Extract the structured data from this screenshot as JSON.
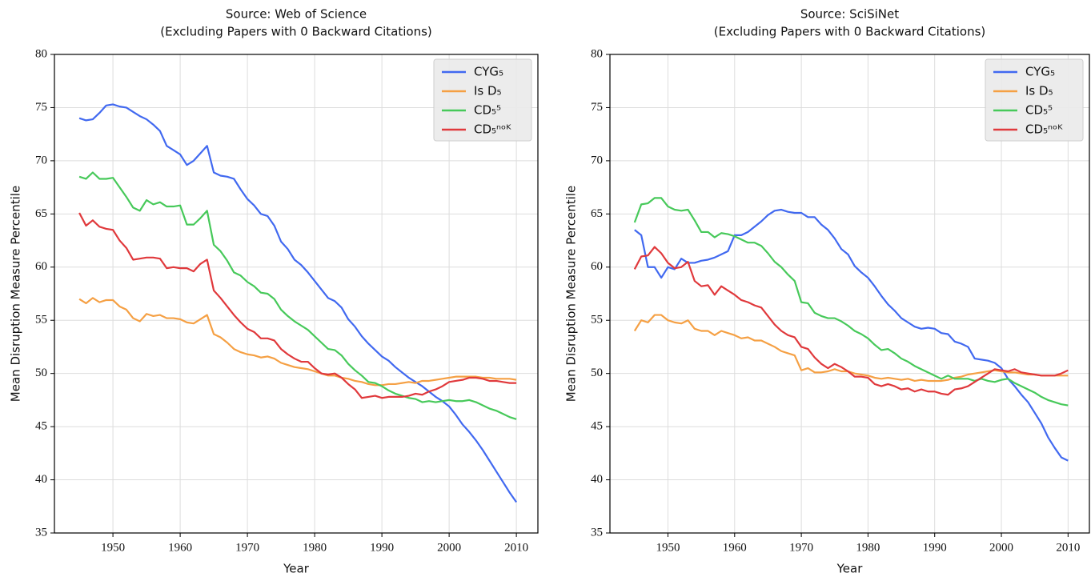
{
  "chart_data": [
    {
      "type": "line",
      "title": [
        "Source: Web of Science",
        "(Excluding Papers with 0 Backward Citations)"
      ],
      "xlabel": "Year",
      "ylabel": "Mean Disruption Measure Percentile",
      "xlim": [
        1941.3,
        2013.2
      ],
      "ylim": [
        35,
        80
      ],
      "xticks": [
        1950,
        1960,
        1970,
        1980,
        1990,
        2000,
        2010
      ],
      "yticks": [
        35,
        40,
        45,
        50,
        55,
        60,
        65,
        70,
        75,
        80
      ],
      "grid": true,
      "legend": "upper right",
      "x": [
        1945,
        1946,
        1947,
        1948,
        1949,
        1950,
        1951,
        1952,
        1953,
        1954,
        1955,
        1956,
        1957,
        1958,
        1959,
        1960,
        1961,
        1962,
        1963,
        1964,
        1965,
        1966,
        1967,
        1968,
        1969,
        1970,
        1971,
        1972,
        1973,
        1974,
        1975,
        1976,
        1977,
        1978,
        1979,
        1980,
        1981,
        1982,
        1983,
        1984,
        1985,
        1986,
        1987,
        1988,
        1989,
        1990,
        1991,
        1992,
        1993,
        1994,
        1995,
        1996,
        1997,
        1998,
        1999,
        2000,
        2001,
        2002,
        2003,
        2004,
        2005,
        2006,
        2007,
        2008,
        2009,
        2010
      ],
      "series": [
        {
          "name": "CYG₅",
          "color": "#4169f0",
          "values": [
            74.0,
            73.8,
            73.9,
            74.5,
            75.2,
            75.3,
            75.1,
            75.0,
            74.6,
            74.2,
            73.9,
            73.4,
            72.8,
            71.4,
            71.0,
            70.6,
            69.6,
            70.0,
            70.7,
            71.4,
            68.9,
            68.6,
            68.5,
            68.3,
            67.3,
            66.4,
            65.8,
            65.0,
            64.8,
            63.9,
            62.4,
            61.7,
            60.7,
            60.2,
            59.5,
            58.7,
            57.9,
            57.1,
            56.8,
            56.2,
            55.1,
            54.4,
            53.5,
            52.8,
            52.2,
            51.6,
            51.2,
            50.6,
            50.1,
            49.6,
            49.2,
            48.8,
            48.3,
            47.8,
            47.4,
            46.9,
            46.1,
            45.2,
            44.5,
            43.7,
            42.8,
            41.8,
            40.8,
            39.8,
            38.8,
            37.9
          ]
        },
        {
          "name": "Is D₅",
          "color": "#f5a044",
          "values": [
            57.0,
            56.6,
            57.1,
            56.7,
            56.9,
            56.9,
            56.3,
            56.0,
            55.2,
            54.9,
            55.6,
            55.4,
            55.5,
            55.2,
            55.2,
            55.1,
            54.8,
            54.7,
            55.1,
            55.5,
            53.7,
            53.4,
            52.9,
            52.3,
            52.0,
            51.8,
            51.7,
            51.5,
            51.6,
            51.4,
            51.0,
            50.8,
            50.6,
            50.5,
            50.4,
            50.2,
            50.0,
            49.8,
            49.8,
            49.6,
            49.5,
            49.3,
            49.2,
            49.0,
            48.9,
            48.9,
            49.0,
            49.0,
            49.1,
            49.2,
            49.1,
            49.3,
            49.3,
            49.4,
            49.5,
            49.6,
            49.7,
            49.7,
            49.7,
            49.7,
            49.6,
            49.6,
            49.5,
            49.5,
            49.5,
            49.4
          ]
        },
        {
          "name": "CD₅⁵",
          "color": "#47c95a",
          "values": [
            68.5,
            68.3,
            68.9,
            68.3,
            68.3,
            68.4,
            67.5,
            66.6,
            65.6,
            65.3,
            66.3,
            65.9,
            66.1,
            65.7,
            65.7,
            65.8,
            64.0,
            64.0,
            64.6,
            65.3,
            62.1,
            61.5,
            60.6,
            59.5,
            59.2,
            58.6,
            58.2,
            57.6,
            57.5,
            57.0,
            56.0,
            55.4,
            54.9,
            54.5,
            54.1,
            53.5,
            52.9,
            52.3,
            52.2,
            51.7,
            50.9,
            50.3,
            49.8,
            49.2,
            49.1,
            48.8,
            48.4,
            48.1,
            47.9,
            47.7,
            47.6,
            47.3,
            47.4,
            47.3,
            47.4,
            47.5,
            47.4,
            47.4,
            47.5,
            47.3,
            47.0,
            46.7,
            46.5,
            46.2,
            45.9,
            45.7
          ]
        },
        {
          "name": "CD₅ⁿᵒᴷ",
          "color": "#e0393c",
          "values": [
            65.1,
            63.9,
            64.4,
            63.8,
            63.6,
            63.5,
            62.5,
            61.8,
            60.7,
            60.8,
            60.9,
            60.9,
            60.8,
            59.9,
            60.0,
            59.9,
            59.9,
            59.6,
            60.3,
            60.7,
            57.8,
            57.1,
            56.3,
            55.5,
            54.8,
            54.2,
            53.9,
            53.3,
            53.3,
            53.1,
            52.3,
            51.8,
            51.4,
            51.1,
            51.1,
            50.5,
            50.0,
            49.9,
            50.0,
            49.6,
            49.0,
            48.5,
            47.7,
            47.8,
            47.9,
            47.7,
            47.8,
            47.8,
            47.8,
            47.9,
            48.1,
            48.0,
            48.3,
            48.5,
            48.8,
            49.2,
            49.3,
            49.4,
            49.6,
            49.6,
            49.5,
            49.3,
            49.3,
            49.2,
            49.1,
            49.1
          ]
        }
      ]
    },
    {
      "type": "line",
      "title": [
        "Source: SciSiNet",
        "(Excluding Papers with 0 Backward Citations)"
      ],
      "xlabel": "Year",
      "ylabel": "Mean Disruption Measure Percentile",
      "xlim": [
        1941.3,
        2013.2
      ],
      "ylim": [
        35,
        80
      ],
      "xticks": [
        1950,
        1960,
        1970,
        1980,
        1990,
        2000,
        2010
      ],
      "yticks": [
        35,
        40,
        45,
        50,
        55,
        60,
        65,
        70,
        75,
        80
      ],
      "grid": true,
      "legend": "upper right",
      "x": [
        1945,
        1946,
        1947,
        1948,
        1949,
        1950,
        1951,
        1952,
        1953,
        1954,
        1955,
        1956,
        1957,
        1958,
        1959,
        1960,
        1961,
        1962,
        1963,
        1964,
        1965,
        1966,
        1967,
        1968,
        1969,
        1970,
        1971,
        1972,
        1973,
        1974,
        1975,
        1976,
        1977,
        1978,
        1979,
        1980,
        1981,
        1982,
        1983,
        1984,
        1985,
        1986,
        1987,
        1988,
        1989,
        1990,
        1991,
        1992,
        1993,
        1994,
        1995,
        1996,
        1997,
        1998,
        1999,
        2000,
        2001,
        2002,
        2003,
        2004,
        2005,
        2006,
        2007,
        2008,
        2009,
        2010
      ],
      "series": [
        {
          "name": "CYG₅",
          "color": "#4169f0",
          "values": [
            63.5,
            63.0,
            60.0,
            60.0,
            59.0,
            60.0,
            59.8,
            60.8,
            60.4,
            60.4,
            60.6,
            60.7,
            60.9,
            61.2,
            61.5,
            63.0,
            63.0,
            63.3,
            63.8,
            64.3,
            64.9,
            65.3,
            65.4,
            65.2,
            65.1,
            65.1,
            64.7,
            64.7,
            64.0,
            63.5,
            62.7,
            61.7,
            61.2,
            60.1,
            59.5,
            59.0,
            58.2,
            57.3,
            56.5,
            55.9,
            55.2,
            54.8,
            54.4,
            54.2,
            54.3,
            54.2,
            53.8,
            53.7,
            53.0,
            52.8,
            52.5,
            51.4,
            51.3,
            51.2,
            51.0,
            50.5,
            49.5,
            48.8,
            48.0,
            47.3,
            46.3,
            45.3,
            44.0,
            43.0,
            42.1,
            41.8
          ]
        },
        {
          "name": "Is D₅",
          "color": "#f5a044",
          "values": [
            54.0,
            55.0,
            54.8,
            55.5,
            55.5,
            55.0,
            54.8,
            54.7,
            55.0,
            54.2,
            54.0,
            54.0,
            53.6,
            54.0,
            53.8,
            53.6,
            53.3,
            53.4,
            53.1,
            53.1,
            52.8,
            52.5,
            52.1,
            51.9,
            51.7,
            50.3,
            50.5,
            50.1,
            50.1,
            50.2,
            50.4,
            50.2,
            50.2,
            50.0,
            49.9,
            49.8,
            49.6,
            49.5,
            49.6,
            49.5,
            49.4,
            49.5,
            49.3,
            49.4,
            49.3,
            49.3,
            49.3,
            49.4,
            49.6,
            49.7,
            49.9,
            50.0,
            50.1,
            50.2,
            50.3,
            50.2,
            50.1,
            50.1,
            50.0,
            49.9,
            49.9,
            49.8,
            49.8,
            49.8,
            49.8,
            49.8
          ]
        },
        {
          "name": "CD₅⁵",
          "color": "#47c95a",
          "values": [
            64.2,
            65.9,
            66.0,
            66.5,
            66.5,
            65.7,
            65.4,
            65.3,
            65.4,
            64.4,
            63.3,
            63.3,
            62.8,
            63.2,
            63.1,
            62.9,
            62.6,
            62.3,
            62.3,
            62.0,
            61.3,
            60.5,
            60.0,
            59.3,
            58.7,
            56.7,
            56.6,
            55.7,
            55.4,
            55.2,
            55.2,
            54.9,
            54.5,
            54.0,
            53.7,
            53.3,
            52.7,
            52.2,
            52.3,
            51.9,
            51.4,
            51.1,
            50.7,
            50.4,
            50.1,
            49.8,
            49.5,
            49.8,
            49.5,
            49.5,
            49.5,
            49.3,
            49.5,
            49.3,
            49.2,
            49.4,
            49.5,
            49.1,
            48.8,
            48.5,
            48.2,
            47.8,
            47.5,
            47.3,
            47.1,
            47.0
          ]
        },
        {
          "name": "CD₅ⁿᵒᴷ",
          "color": "#e0393c",
          "values": [
            59.8,
            61.0,
            61.1,
            61.9,
            61.3,
            60.4,
            59.9,
            60.0,
            60.5,
            58.7,
            58.2,
            58.3,
            57.4,
            58.2,
            57.8,
            57.4,
            56.9,
            56.7,
            56.4,
            56.2,
            55.4,
            54.6,
            54.0,
            53.6,
            53.4,
            52.5,
            52.3,
            51.5,
            50.9,
            50.5,
            50.9,
            50.6,
            50.2,
            49.7,
            49.7,
            49.6,
            49.0,
            48.8,
            49.0,
            48.8,
            48.5,
            48.6,
            48.3,
            48.5,
            48.3,
            48.3,
            48.1,
            48.0,
            48.5,
            48.6,
            48.8,
            49.2,
            49.6,
            50.0,
            50.4,
            50.3,
            50.2,
            50.4,
            50.1,
            50.0,
            49.9,
            49.8,
            49.8,
            49.8,
            50.0,
            50.3
          ]
        }
      ]
    }
  ]
}
